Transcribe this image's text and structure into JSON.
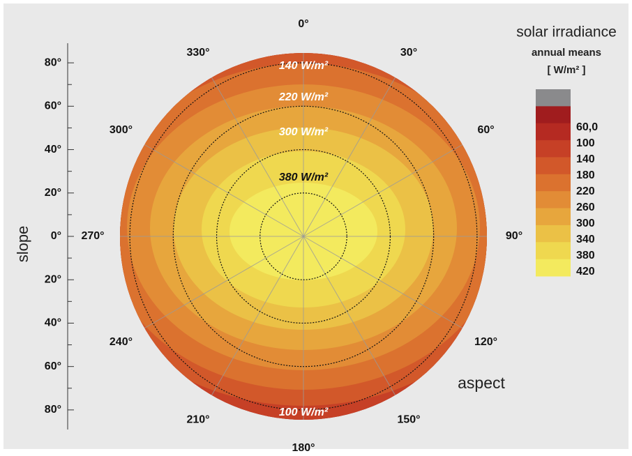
{
  "chart_data": {
    "type": "polar-contour",
    "title": "solar irradiance",
    "subtitle": "annual means",
    "unit": "[ W/m² ]",
    "ylabel": "slope",
    "xlabel": "aspect",
    "xticks": [
      {
        "value": 0,
        "label": "0°"
      },
      {
        "value": 30,
        "label": "30°"
      },
      {
        "value": 60,
        "label": "60°"
      },
      {
        "value": 90,
        "label": "90°"
      },
      {
        "value": 120,
        "label": "120°"
      },
      {
        "value": 150,
        "label": "150°"
      },
      {
        "value": 180,
        "label": "180°"
      },
      {
        "value": 210,
        "label": "210°"
      },
      {
        "value": 240,
        "label": "240°"
      },
      {
        "value": 270,
        "label": "270°"
      },
      {
        "value": 300,
        "label": "300°"
      },
      {
        "value": 330,
        "label": "330°"
      }
    ],
    "ylim": [
      0,
      90
    ],
    "yticks": [
      {
        "value": 80,
        "label": "80°"
      },
      {
        "value": 60,
        "label": "60°"
      },
      {
        "value": 40,
        "label": "40°"
      },
      {
        "value": 20,
        "label": "20°"
      },
      {
        "value": 0,
        "label": "0°"
      }
    ],
    "yticks_lower": [
      {
        "value": 20,
        "label": "20°"
      },
      {
        "value": 40,
        "label": "40°"
      },
      {
        "value": 60,
        "label": "60°"
      },
      {
        "value": 80,
        "label": "80°"
      }
    ],
    "levels": [
      {
        "value": 60,
        "label": "60,0"
      },
      100,
      140,
      180,
      220,
      260,
      300,
      340,
      380,
      420
    ],
    "colors": [
      "#8a8a8c",
      "#a01c1e",
      "#b52a22",
      "#c64026",
      "#d2582a",
      "#db722f",
      "#e28c36",
      "#e7a63d",
      "#ebc146",
      "#efd84f",
      "#f3ea5e"
    ],
    "contour_labels": [
      "140 W/m²",
      "220 W/m²",
      "300 W/m²",
      "380 W/m²",
      "100 W/m²"
    ],
    "grid": true
  }
}
